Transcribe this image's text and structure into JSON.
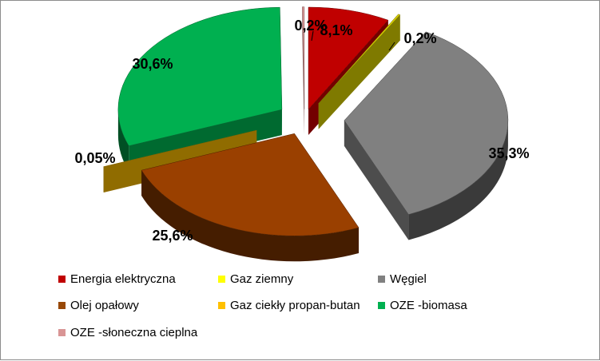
{
  "chart_data": {
    "type": "pie",
    "style": "3d-exploded",
    "title": "",
    "legend_position": "bottom",
    "unit": "%",
    "slices": [
      {
        "name": "Energia elektryczna",
        "value": 8.1,
        "label": "8,1%",
        "color": "#c00000"
      },
      {
        "name": "Gaz ziemny",
        "value": 0.2,
        "label": "0,2%",
        "color": "#d4cc00"
      },
      {
        "name": "Węgiel",
        "value": 35.3,
        "label": "35,3%",
        "color": "#808080"
      },
      {
        "name": "Olej opałowy",
        "value": 25.6,
        "label": "25,6%",
        "color": "#9a4000"
      },
      {
        "name": "Gaz ciekły propan-butan",
        "value": 0.05,
        "label": "0,05%",
        "color": "#f0b400"
      },
      {
        "name": "OZE -biomasa",
        "value": 30.6,
        "label": "30,6%",
        "color": "#00b050"
      },
      {
        "name": "OZE -słoneczna cieplna",
        "value": 0.2,
        "label": "0,2%",
        "color": "#d99595"
      }
    ],
    "legend_swatch_colors": {
      "Energia elektryczna": "#c00000",
      "Gaz ziemny": "#ffff00",
      "Węgiel": "#808080",
      "Olej opałowy": "#984806",
      "Gaz ciekły propan-butan": "#ffc000",
      "OZE -biomasa": "#00b050",
      "OZE -słoneczna cieplna": "#d99595"
    }
  }
}
